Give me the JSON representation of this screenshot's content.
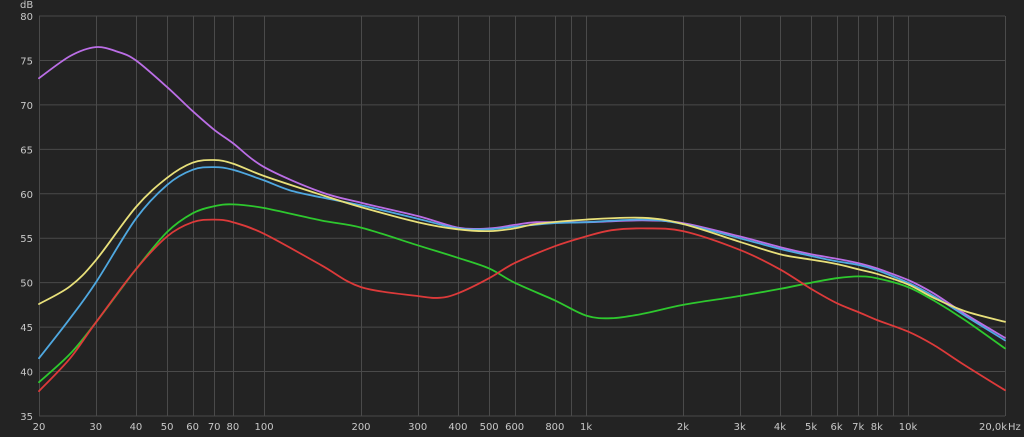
{
  "chart_data": {
    "type": "line",
    "ylabel": "dB",
    "xunit": "Hz",
    "xscale": "log",
    "xlim": [
      20,
      20000
    ],
    "ylim": [
      35,
      80
    ],
    "grid": true,
    "yticks": [
      35,
      40,
      45,
      50,
      55,
      60,
      65,
      70,
      75,
      80
    ],
    "ytick_labels": [
      "35",
      "40",
      "45",
      "50",
      "55",
      "60",
      "65",
      "70",
      "75",
      "80"
    ],
    "xticks": [
      20,
      30,
      40,
      50,
      60,
      70,
      80,
      100,
      200,
      300,
      400,
      500,
      600,
      800,
      1000,
      2000,
      3000,
      4000,
      5000,
      6000,
      7000,
      8000,
      10000,
      20000
    ],
    "xtick_labels": [
      "20",
      "30",
      "40",
      "50",
      "60",
      "70",
      "80",
      "100",
      "200",
      "300",
      "400",
      "500",
      "600",
      "800",
      "1k",
      "2k",
      "3k",
      "4k",
      "5k",
      "6k",
      "7k",
      "8k",
      "10k",
      "20,0k"
    ],
    "xgrid_minor": [
      900,
      9000
    ],
    "series": [
      {
        "color": "#bb6ee6",
        "points": [
          [
            20,
            73
          ],
          [
            25,
            75.5
          ],
          [
            30,
            76.5
          ],
          [
            35,
            76
          ],
          [
            40,
            75
          ],
          [
            50,
            72
          ],
          [
            60,
            69.3
          ],
          [
            70,
            67.2
          ],
          [
            80,
            65.7
          ],
          [
            100,
            63
          ],
          [
            150,
            60.2
          ],
          [
            200,
            59
          ],
          [
            300,
            57.5
          ],
          [
            400,
            56.2
          ],
          [
            500,
            56.1
          ],
          [
            600,
            56.5
          ],
          [
            700,
            56.8
          ],
          [
            1000,
            56.8
          ],
          [
            1500,
            57
          ],
          [
            2000,
            56.7
          ],
          [
            3000,
            55.2
          ],
          [
            4000,
            54
          ],
          [
            5000,
            53.2
          ],
          [
            6000,
            52.7
          ],
          [
            7000,
            52.2
          ],
          [
            8000,
            51.6
          ],
          [
            10000,
            50.3
          ],
          [
            12000,
            48.8
          ],
          [
            15000,
            46.5
          ],
          [
            20000,
            43.8
          ]
        ]
      },
      {
        "color": "#4fa8e0",
        "points": [
          [
            20,
            41.5
          ],
          [
            25,
            46
          ],
          [
            30,
            50
          ],
          [
            40,
            57.2
          ],
          [
            50,
            61
          ],
          [
            60,
            62.7
          ],
          [
            70,
            63
          ],
          [
            80,
            62.7
          ],
          [
            100,
            61.5
          ],
          [
            120,
            60.4
          ],
          [
            150,
            59.6
          ],
          [
            200,
            58.7
          ],
          [
            300,
            57.2
          ],
          [
            400,
            56.1
          ],
          [
            500,
            56
          ],
          [
            600,
            56.3
          ],
          [
            800,
            56.7
          ],
          [
            1000,
            56.8
          ],
          [
            1500,
            57.1
          ],
          [
            2000,
            56.6
          ],
          [
            3000,
            55
          ],
          [
            4000,
            53.8
          ],
          [
            5000,
            53
          ],
          [
            6000,
            52.4
          ],
          [
            7000,
            52
          ],
          [
            8000,
            51.4
          ],
          [
            10000,
            50
          ],
          [
            12000,
            48.5
          ],
          [
            15000,
            46.3
          ],
          [
            20000,
            43.5
          ]
        ]
      },
      {
        "color": "#e8e07a",
        "points": [
          [
            20,
            47.6
          ],
          [
            25,
            49.6
          ],
          [
            30,
            52.5
          ],
          [
            40,
            58.5
          ],
          [
            50,
            61.8
          ],
          [
            60,
            63.5
          ],
          [
            70,
            63.8
          ],
          [
            80,
            63.4
          ],
          [
            100,
            62
          ],
          [
            150,
            59.9
          ],
          [
            200,
            58.5
          ],
          [
            300,
            56.8
          ],
          [
            400,
            56
          ],
          [
            500,
            55.8
          ],
          [
            600,
            56.1
          ],
          [
            700,
            56.6
          ],
          [
            1000,
            57.1
          ],
          [
            1500,
            57.3
          ],
          [
            2000,
            56.6
          ],
          [
            3000,
            54.6
          ],
          [
            4000,
            53.2
          ],
          [
            5000,
            52.6
          ],
          [
            6000,
            52.1
          ],
          [
            7000,
            51.5
          ],
          [
            8000,
            51
          ],
          [
            10000,
            49.8
          ],
          [
            12000,
            48.3
          ],
          [
            15000,
            46.8
          ],
          [
            20000,
            45.6
          ]
        ]
      },
      {
        "color": "#2ec82e",
        "points": [
          [
            20,
            38.8
          ],
          [
            25,
            42
          ],
          [
            30,
            45.5
          ],
          [
            40,
            51.5
          ],
          [
            50,
            55.7
          ],
          [
            60,
            57.8
          ],
          [
            70,
            58.6
          ],
          [
            80,
            58.8
          ],
          [
            100,
            58.4
          ],
          [
            150,
            57
          ],
          [
            200,
            56.2
          ],
          [
            300,
            54.2
          ],
          [
            400,
            52.8
          ],
          [
            500,
            51.6
          ],
          [
            600,
            50
          ],
          [
            800,
            48
          ],
          [
            1000,
            46.3
          ],
          [
            1200,
            46
          ],
          [
            1500,
            46.5
          ],
          [
            2000,
            47.5
          ],
          [
            3000,
            48.5
          ],
          [
            4000,
            49.3
          ],
          [
            5000,
            50
          ],
          [
            6000,
            50.5
          ],
          [
            7000,
            50.7
          ],
          [
            8000,
            50.5
          ],
          [
            10000,
            49.5
          ],
          [
            12000,
            48
          ],
          [
            15000,
            45.8
          ],
          [
            20000,
            42.6
          ]
        ]
      },
      {
        "color": "#dd3a3a",
        "points": [
          [
            20,
            37.8
          ],
          [
            25,
            41.5
          ],
          [
            30,
            45.5
          ],
          [
            40,
            51.5
          ],
          [
            50,
            55.2
          ],
          [
            60,
            56.8
          ],
          [
            70,
            57.1
          ],
          [
            80,
            56.8
          ],
          [
            100,
            55.5
          ],
          [
            150,
            52
          ],
          [
            200,
            49.5
          ],
          [
            300,
            48.5
          ],
          [
            350,
            48.3
          ],
          [
            400,
            48.8
          ],
          [
            500,
            50.5
          ],
          [
            600,
            52.2
          ],
          [
            800,
            54.1
          ],
          [
            1000,
            55.2
          ],
          [
            1200,
            55.9
          ],
          [
            1500,
            56.1
          ],
          [
            2000,
            55.8
          ],
          [
            3000,
            53.7
          ],
          [
            4000,
            51.5
          ],
          [
            5000,
            49.3
          ],
          [
            6000,
            47.7
          ],
          [
            7000,
            46.7
          ],
          [
            8000,
            45.8
          ],
          [
            10000,
            44.5
          ],
          [
            12000,
            43
          ],
          [
            15000,
            40.7
          ],
          [
            20000,
            37.9
          ]
        ]
      }
    ]
  }
}
